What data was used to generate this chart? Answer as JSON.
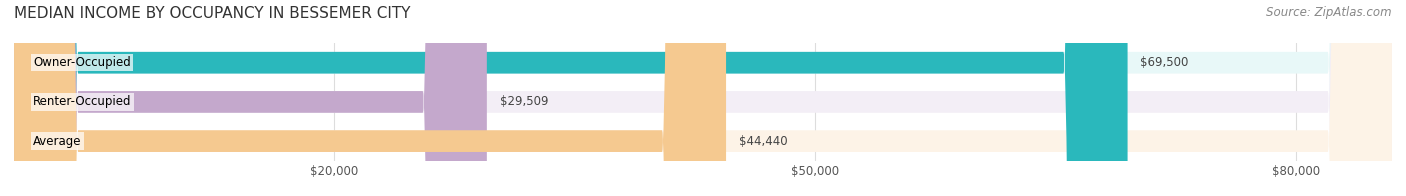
{
  "title": "MEDIAN INCOME BY OCCUPANCY IN BESSEMER CITY",
  "source": "Source: ZipAtlas.com",
  "categories": [
    "Owner-Occupied",
    "Renter-Occupied",
    "Average"
  ],
  "values": [
    69500,
    29509,
    44440
  ],
  "labels": [
    "$69,500",
    "$29,509",
    "$44,440"
  ],
  "bar_colors": [
    "#2ab8bc",
    "#c4a8cc",
    "#f5c990"
  ],
  "bar_bg_colors": [
    "#e8f8f8",
    "#f3eef6",
    "#fdf3e7"
  ],
  "xlim": [
    0,
    86000
  ],
  "xticks": [
    0,
    20000,
    50000,
    80000
  ],
  "xtick_labels": [
    "$20,000",
    "$50,000",
    "$80,000"
  ],
  "figsize": [
    14.06,
    1.96
  ],
  "dpi": 100,
  "title_fontsize": 11,
  "label_fontsize": 8.5,
  "bar_label_fontsize": 8.5,
  "category_fontsize": 8.5,
  "source_fontsize": 8.5,
  "bar_height": 0.55,
  "background_color": "#ffffff",
  "grid_color": "#dddddd"
}
